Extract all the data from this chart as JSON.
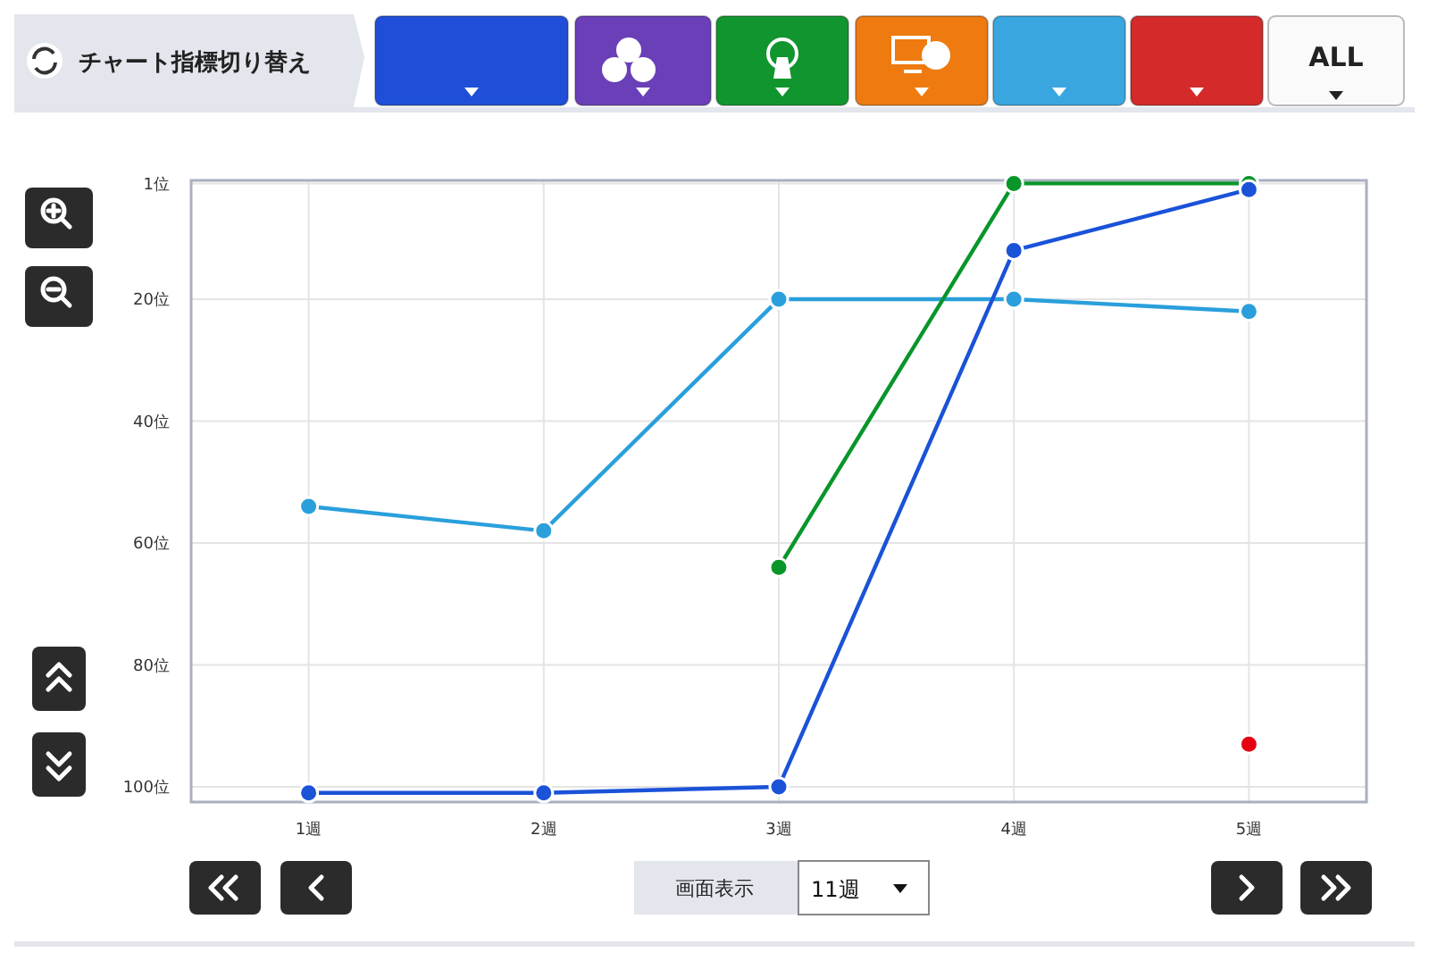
{
  "chart_data": {
    "type": "line",
    "categories": [
      "1週",
      "2週",
      "3週",
      "4週",
      "5週"
    ],
    "series": [
      {
        "color": "#2a9fdc",
        "values": [
          54,
          58,
          20,
          20,
          22
        ]
      },
      {
        "color": "#08962a",
        "values": [
          null,
          null,
          64,
          1,
          1
        ]
      },
      {
        "color": "#1a52d8",
        "values": [
          101,
          101,
          100,
          12,
          2
        ]
      },
      {
        "color": "#e60012",
        "values": [
          null,
          null,
          null,
          null,
          93
        ]
      }
    ],
    "ylim": [
      102.5,
      0.5
    ],
    "yticks": [
      {
        "value": 1,
        "label": "1位"
      },
      {
        "value": 20,
        "label": "20位"
      },
      {
        "value": 40,
        "label": "40位"
      },
      {
        "value": 60,
        "label": "60位"
      },
      {
        "value": 80,
        "label": "80位"
      },
      {
        "value": 100,
        "label": "100位"
      }
    ],
    "grid": true,
    "marker": "circle",
    "line_style": "solid",
    "annotations": [
      "チャート指標切り替え",
      "ALL",
      "画面表示",
      "11週"
    ]
  }
}
